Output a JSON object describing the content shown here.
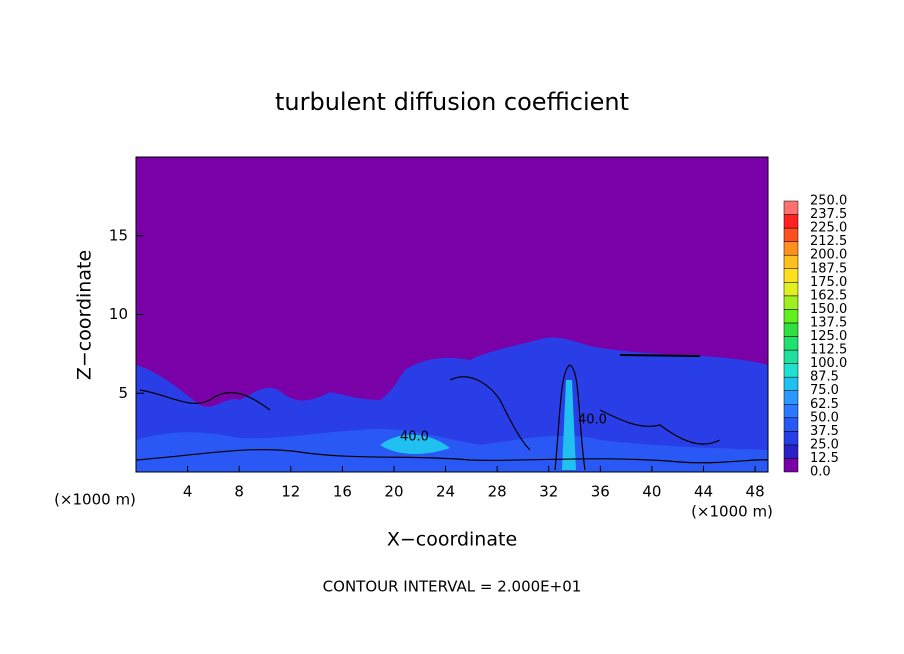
{
  "chart_data": {
    "type": "contour",
    "title": "turbulent diffusion coefficient",
    "xlabel": "X−coordinate",
    "ylabel": "Z−coordinate",
    "x_unit_left": "(×1000 m)",
    "x_unit_right": "(×1000 m)",
    "footer": "CONTOUR INTERVAL = 2.000E+01",
    "xlim": [
      0,
      49
    ],
    "ylim": [
      0,
      20
    ],
    "xticks": [
      4,
      8,
      12,
      16,
      20,
      24,
      28,
      32,
      36,
      40,
      44,
      48
    ],
    "yticks": [
      5,
      10,
      15
    ],
    "contour_labels": [
      "40.0",
      "40.0"
    ],
    "colorbar": {
      "levels": [
        {
          "value": 0,
          "label": "0.0"
        },
        12.5,
        {
          "value": 25,
          "label": "25.0"
        },
        37.5,
        {
          "value": 50,
          "label": "50.0"
        },
        62.5,
        {
          "value": 75,
          "label": "75.0"
        },
        87.5,
        {
          "value": 100,
          "label": "100.0"
        },
        112.5,
        {
          "value": 125,
          "label": "125.0"
        },
        137.5,
        {
          "value": 150,
          "label": "150.0"
        },
        162.5,
        {
          "value": 175,
          "label": "175.0"
        },
        187.5,
        {
          "value": 200,
          "label": "200.0"
        },
        212.5,
        {
          "value": 225,
          "label": "225.0"
        },
        237.5,
        {
          "value": 250,
          "label": "250.0"
        }
      ],
      "colors": [
        "#7a00a8",
        "#2a20c8",
        "#2a3ee8",
        "#2a58f4",
        "#2a78ff",
        "#2a98ff",
        "#20c0f0",
        "#20e0d0",
        "#20e0a0",
        "#20e070",
        "#30e040",
        "#60f020",
        "#a0f020",
        "#e0f020",
        "#ffe020",
        "#ffc020",
        "#ff9020",
        "#ff5020",
        "#ff2020",
        "#ff7070"
      ]
    }
  }
}
